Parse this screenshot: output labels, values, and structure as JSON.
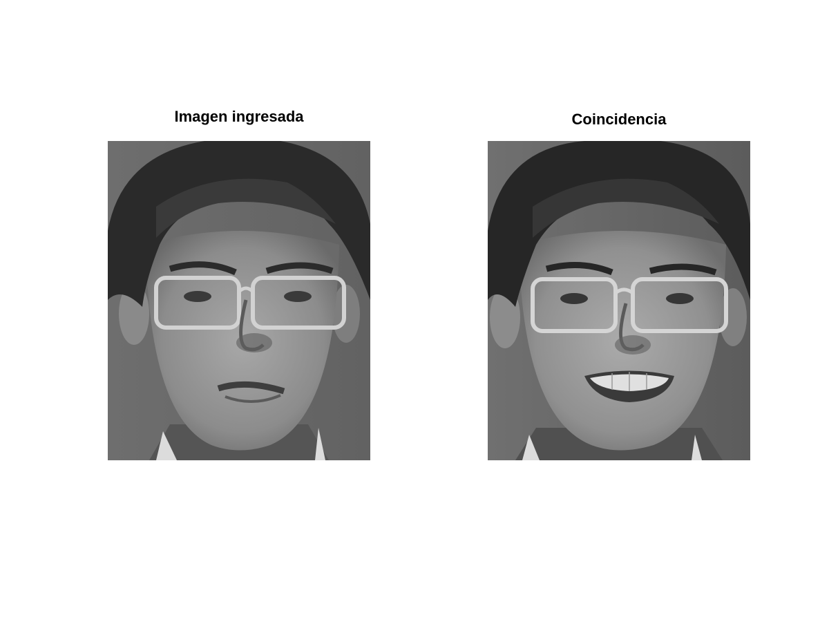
{
  "panels": [
    {
      "title": "Imagen ingresada",
      "image": "grayscale-face-photo-man-glasses-neutral-expression"
    },
    {
      "title": "Coincidencia",
      "image": "grayscale-face-photo-man-glasses-smiling"
    }
  ]
}
